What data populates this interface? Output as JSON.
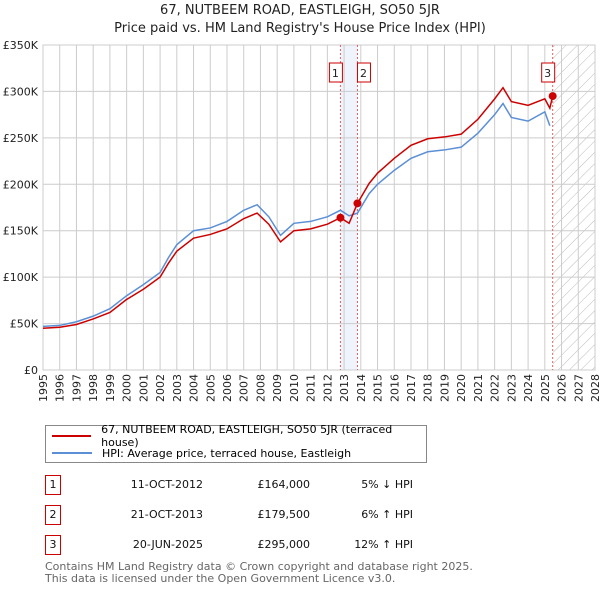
{
  "chart_data": {
    "type": "line",
    "title": "67, NUTBEEM ROAD, EASTLEIGH, SO50 5JR",
    "subtitle": "Price paid vs. HM Land Registry's House Price Index (HPI)",
    "xlim": [
      1995,
      2028
    ],
    "ylim": [
      0,
      350000
    ],
    "x_ticks": [
      "1995",
      "1996",
      "1997",
      "1998",
      "1999",
      "2000",
      "2001",
      "2002",
      "2003",
      "2004",
      "2005",
      "2006",
      "2007",
      "2008",
      "2009",
      "2010",
      "2011",
      "2012",
      "2013",
      "2014",
      "2015",
      "2016",
      "2017",
      "2018",
      "2019",
      "2020",
      "2021",
      "2022",
      "2023",
      "2024",
      "2025",
      "2026",
      "2027",
      "2028"
    ],
    "y_ticks": [
      {
        "v": 0,
        "label": "£0"
      },
      {
        "v": 50000,
        "label": "£50K"
      },
      {
        "v": 100000,
        "label": "£100K"
      },
      {
        "v": 150000,
        "label": "£150K"
      },
      {
        "v": 200000,
        "label": "£200K"
      },
      {
        "v": 250000,
        "label": "£250K"
      },
      {
        "v": 300000,
        "label": "£300K"
      },
      {
        "v": 350000,
        "label": "£350K"
      }
    ],
    "grid": true,
    "series": [
      {
        "name": "67, NUTBEEM ROAD, EASTLEIGH, SO50 5JR (terraced house)",
        "color": "#cc0000",
        "x": [
          1995,
          1996,
          1997,
          1998,
          1999,
          2000,
          2001,
          2002,
          2002.5,
          2003,
          2004,
          2005,
          2006,
          2007,
          2007.8,
          2008.5,
          2009.2,
          2010,
          2011,
          2012,
          2012.78,
          2013.3,
          2013.8,
          2014.5,
          2015,
          2016,
          2017,
          2018,
          2019,
          2020,
          2021,
          2022,
          2022.5,
          2023,
          2024,
          2025,
          2025.3,
          2025.47
        ],
        "y": [
          45000,
          46000,
          49000,
          55000,
          62000,
          76000,
          87000,
          100000,
          115000,
          128000,
          142000,
          146000,
          152000,
          163000,
          169000,
          157000,
          138000,
          150000,
          152000,
          157000,
          164000,
          158000,
          179500,
          201000,
          212000,
          228000,
          242000,
          249000,
          251000,
          254000,
          270000,
          292000,
          304000,
          289000,
          285000,
          292000,
          282000,
          295000
        ]
      },
      {
        "name": "HPI: Average price, terraced house, Eastleigh",
        "color": "#5b8fd6",
        "x": [
          1995,
          1996,
          1997,
          1998,
          1999,
          2000,
          2001,
          2002,
          2002.5,
          2003,
          2004,
          2005,
          2006,
          2007,
          2007.8,
          2008.5,
          2009.2,
          2010,
          2011,
          2012,
          2012.78,
          2013.3,
          2013.8,
          2014.5,
          2015,
          2016,
          2017,
          2018,
          2019,
          2020,
          2021,
          2022,
          2022.5,
          2023,
          2024,
          2025,
          2025.3
        ],
        "y": [
          47000,
          48000,
          52000,
          58000,
          66000,
          80000,
          92000,
          105000,
          121000,
          135000,
          150000,
          153000,
          160000,
          172000,
          178000,
          165000,
          145000,
          158000,
          160000,
          165000,
          172000,
          166000,
          169000,
          190000,
          200000,
          215000,
          228000,
          235000,
          237000,
          240000,
          255000,
          275000,
          287000,
          272000,
          268000,
          278000,
          263000
        ]
      }
    ],
    "sales": [
      {
        "id": "1",
        "x": 2012.78,
        "y": 164000,
        "date": "11-OCT-2012",
        "price": "£164,000",
        "hpi": "5% ↓ HPI"
      },
      {
        "id": "2",
        "x": 2013.8,
        "y": 179500,
        "date": "21-OCT-2013",
        "price": "£179,500",
        "hpi": "6% ↑ HPI"
      },
      {
        "id": "3",
        "x": 2025.47,
        "y": 295000,
        "date": "20-JUN-2025",
        "price": "£295,000",
        "hpi": "12% ↑ HPI"
      }
    ],
    "forecast_start": 2025.47,
    "legend_position": "bottom"
  },
  "footer": {
    "line1": "Contains HM Land Registry data © Crown copyright and database right 2025.",
    "line2": "This data is licensed under the Open Government Licence v3.0."
  }
}
